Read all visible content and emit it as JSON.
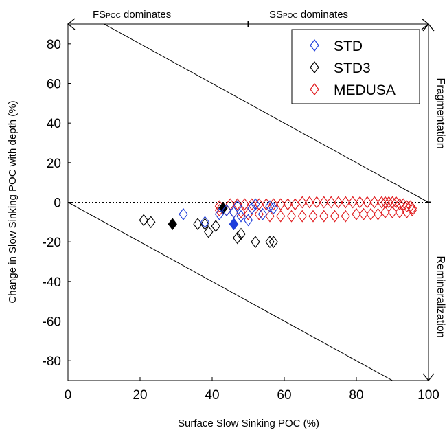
{
  "chart_data": {
    "type": "scatter",
    "xlabel": "Surface Slow Sinking POC (%)",
    "ylabel": "Change in Slow Sinking POC with depth (%)",
    "xlim": [
      0,
      100
    ],
    "ylim": [
      -90,
      90
    ],
    "xticks": [
      "0",
      "20",
      "40",
      "60",
      "80",
      "100"
    ],
    "yticks": [
      "80",
      "60",
      "40",
      "20",
      "0",
      "-20",
      "-40",
      "-60",
      "-80"
    ],
    "xtick_values": [
      0,
      20,
      40,
      60,
      80,
      100
    ],
    "ytick_values": [
      80,
      60,
      40,
      20,
      0,
      -20,
      -40,
      -60,
      -80
    ],
    "top_left_label": "FS",
    "top_left_sub": "POC",
    "top_left_suffix": " dominates",
    "top_right_label": "SS",
    "top_right_sub": "POC",
    "top_right_suffix": " dominates",
    "right_upper_label": "Fragmentation",
    "right_lower_label": "Remineralization",
    "legend_position": "top-right",
    "reference_lines": [
      {
        "x": [
          0,
          100
        ],
        "y": [
          100,
          0
        ]
      },
      {
        "x": [
          0,
          100
        ],
        "y": [
          0,
          -100
        ]
      }
    ],
    "zero_line": {
      "y": 0,
      "style": "dotted"
    },
    "series": [
      {
        "name": "STD",
        "color": "#1f3fdc",
        "marker": "diamond-open",
        "points": [
          [
            32,
            -6
          ],
          [
            38,
            -10
          ],
          [
            42,
            -6
          ],
          [
            44,
            -4
          ],
          [
            46,
            -11
          ],
          [
            48,
            -7
          ],
          [
            50,
            -9
          ],
          [
            51,
            -3
          ],
          [
            52,
            -1
          ],
          [
            54,
            -6
          ],
          [
            56,
            -2
          ],
          [
            57,
            -3
          ],
          [
            46,
            -5
          ],
          [
            47,
            -2
          ]
        ],
        "filled": [
          [
            46,
            -11
          ]
        ]
      },
      {
        "name": "STD3",
        "color": "#000000",
        "marker": "diamond-open",
        "points": [
          [
            21,
            -9
          ],
          [
            23,
            -10
          ],
          [
            36,
            -11
          ],
          [
            38,
            -11
          ],
          [
            39,
            -15
          ],
          [
            41,
            -12
          ],
          [
            43,
            -3
          ],
          [
            46,
            -11
          ],
          [
            47,
            -18
          ],
          [
            48,
            -16
          ],
          [
            52,
            -20
          ],
          [
            56,
            -20
          ],
          [
            57,
            -20
          ]
        ],
        "filled": [
          [
            29,
            -11
          ],
          [
            43,
            -3
          ]
        ]
      },
      {
        "name": "MEDUSA",
        "color": "#e0191c",
        "marker": "diamond-open"
      }
    ]
  }
}
